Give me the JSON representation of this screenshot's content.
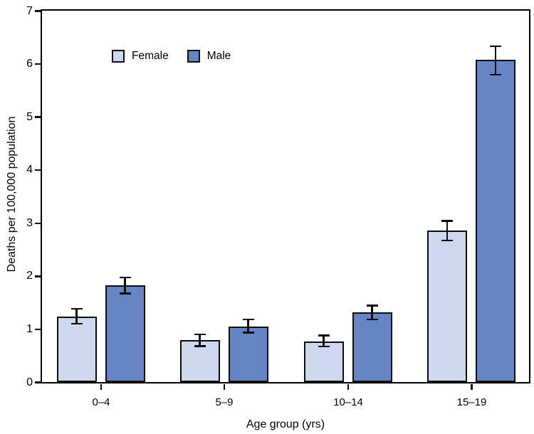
{
  "chart_data": {
    "type": "bar",
    "title": "",
    "categories": [
      "0–4",
      "5–9",
      "10–14",
      "15–19"
    ],
    "series": [
      {
        "name": "Female",
        "color": "#cdd8ee",
        "values": [
          1.24,
          0.79,
          0.77,
          2.86
        ],
        "ci_low": [
          1.1,
          0.68,
          0.67,
          2.67
        ],
        "ci_high": [
          1.38,
          0.9,
          0.88,
          3.04
        ]
      },
      {
        "name": "Male",
        "color": "#6585c5",
        "values": [
          1.82,
          1.05,
          1.31,
          6.07
        ],
        "ci_low": [
          1.67,
          0.93,
          1.18,
          5.79
        ],
        "ci_high": [
          1.97,
          1.18,
          1.44,
          6.33
        ]
      }
    ],
    "xlabel": "Age group (yrs)",
    "ylabel": "Deaths per 100,000 population",
    "ylim": [
      0,
      7
    ],
    "yticks": [
      0,
      1,
      2,
      3,
      4,
      5,
      6,
      7
    ],
    "error_bars": true,
    "grid": false,
    "legend_position": "inside-top-left"
  },
  "colors": {
    "axis": "#000000",
    "bar_border": "#0d0d0d",
    "error_bar": "#0d0d0d",
    "female_fill": "#cdd8ee",
    "male_fill": "#6585c5",
    "background": "#ffffff"
  }
}
